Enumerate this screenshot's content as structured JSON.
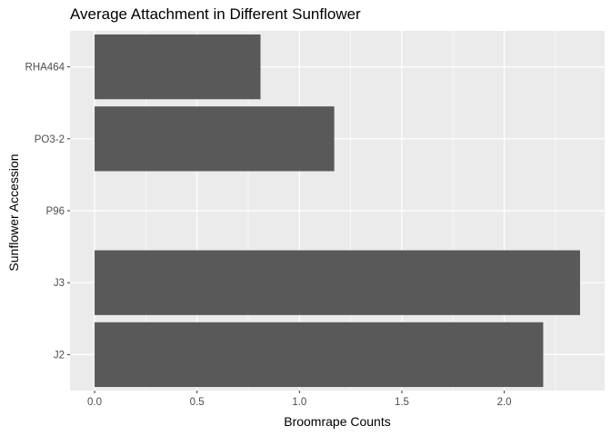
{
  "chart_data": {
    "type": "bar",
    "orientation": "horizontal",
    "title": "Average Attachment in Different Sunflower",
    "xlabel": "Broomrape Counts",
    "ylabel": "Sunflower Accession",
    "categories": [
      "J2",
      "J3",
      "P96",
      "PO3-2",
      "RHA464"
    ],
    "values": [
      2.19,
      2.37,
      0,
      1.17,
      0.81
    ],
    "xlim": [
      -0.12,
      2.49
    ],
    "xticks": [
      0.0,
      0.5,
      1.0,
      1.5,
      2.0
    ],
    "xtick_labels": [
      "0.0",
      "0.5",
      "1.0",
      "1.5",
      "2.0"
    ],
    "grid": true,
    "colors": {
      "panel": "#EBEBEB",
      "grid": "#FFFFFF",
      "bar": "#595959",
      "tick_text": "#4D4D4D"
    }
  }
}
